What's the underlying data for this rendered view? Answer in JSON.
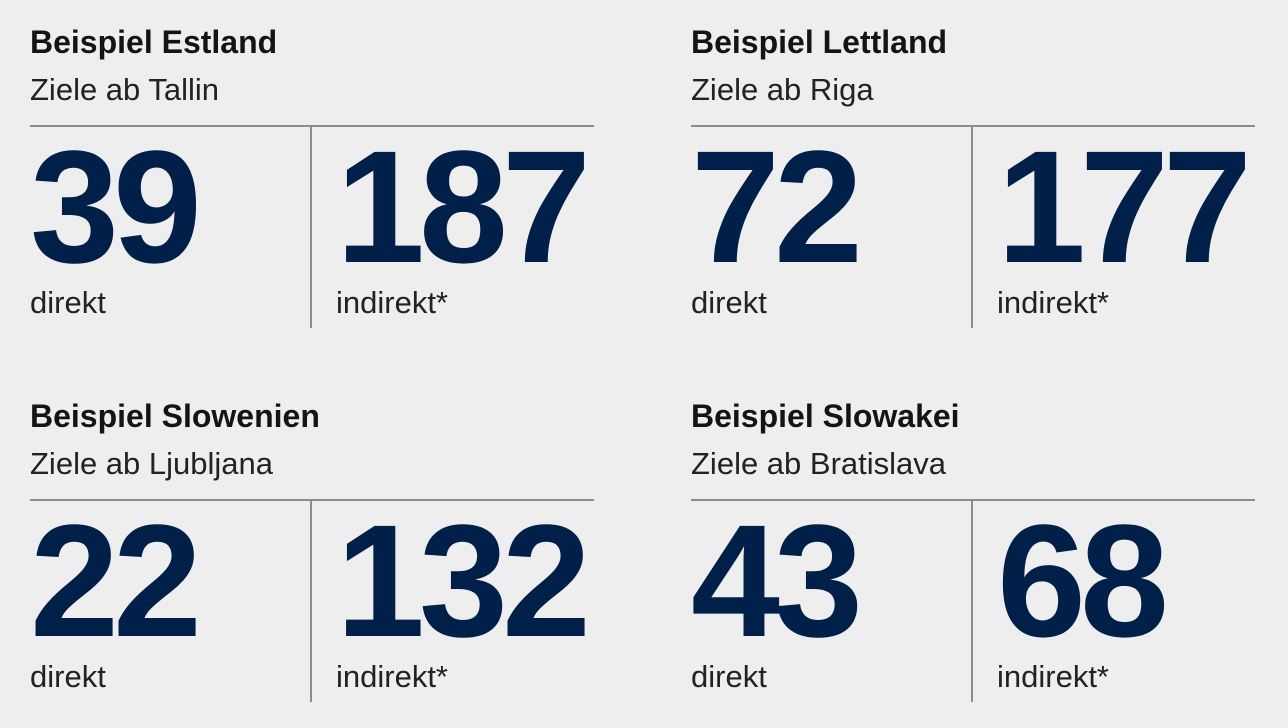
{
  "cards": [
    {
      "title": "Beispiel Estland",
      "subtitle": "Ziele ab Tallin",
      "direct": {
        "value": "39",
        "label": "direkt"
      },
      "indirect": {
        "value": "187",
        "label": "indirekt*"
      }
    },
    {
      "title": "Beispiel Lettland",
      "subtitle": "Ziele ab Riga",
      "direct": {
        "value": "72",
        "label": "direkt"
      },
      "indirect": {
        "value": "177",
        "label": "indirekt*"
      }
    },
    {
      "title": "Beispiel Slowenien",
      "subtitle": "Ziele ab Ljubljana",
      "direct": {
        "value": "22",
        "label": "direkt"
      },
      "indirect": {
        "value": "132",
        "label": "indirekt*"
      }
    },
    {
      "title": "Beispiel Slowakei",
      "subtitle": "Ziele ab Bratislava",
      "direct": {
        "value": "43",
        "label": "direkt"
      },
      "indirect": {
        "value": "68",
        "label": "indirekt*"
      }
    }
  ],
  "colors": {
    "number": "#00204a",
    "background": "#eeeeee",
    "rule": "#8c8c8c"
  }
}
